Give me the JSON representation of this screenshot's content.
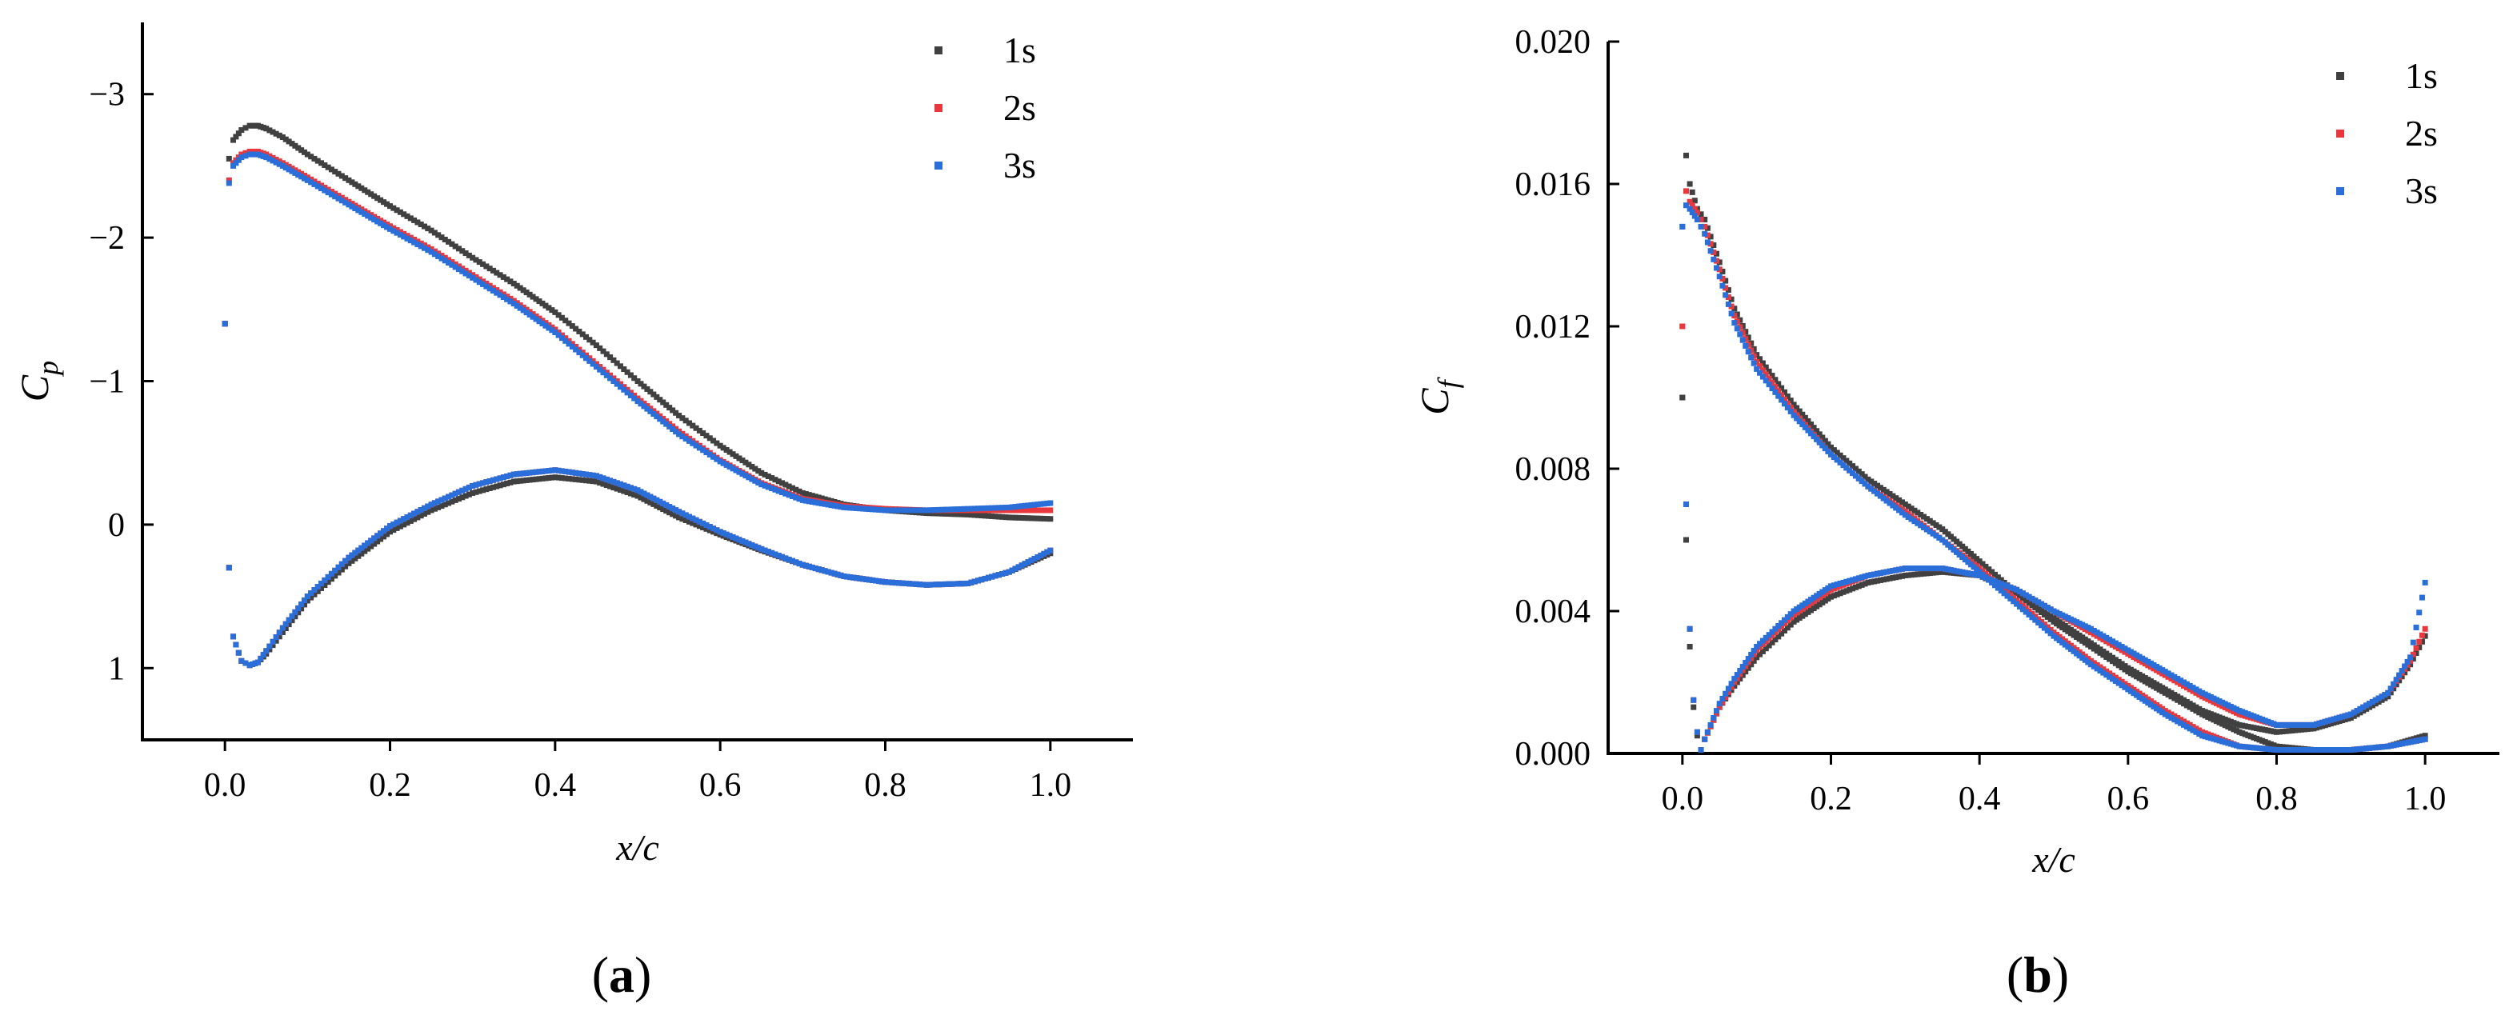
{
  "colors": {
    "1s": "#404040",
    "2s": "#e8383d",
    "3s": "#2a6fd9",
    "axis": "#000000"
  },
  "chart_data": [
    {
      "id": "a",
      "type": "scatter",
      "panel_label_open": "(",
      "panel_label_letter": "a",
      "panel_label_close": ")",
      "xlabel": "x/c",
      "ylabel_main": "C",
      "ylabel_sub": "p",
      "xlim": [
        -0.1,
        1.1
      ],
      "ylim": [
        1.5,
        -3.5
      ],
      "y_inverted": true,
      "x_ticks": [
        0.0,
        0.2,
        0.4,
        0.6,
        0.8,
        1.0
      ],
      "x_tick_labels": [
        "0.0",
        "0.2",
        "0.4",
        "0.6",
        "0.8",
        "1.0"
      ],
      "y_ticks": [
        -3,
        -2,
        -1,
        0,
        1
      ],
      "y_tick_labels": [
        "−3",
        "−2",
        "−1",
        "0",
        "1"
      ],
      "grid": false,
      "legend_position": "top-right",
      "series": [
        {
          "name": "1s",
          "upper": {
            "x": [
              0.0,
              0.005,
              0.01,
              0.02,
              0.03,
              0.04,
              0.05,
              0.07,
              0.1,
              0.15,
              0.2,
              0.25,
              0.3,
              0.35,
              0.4,
              0.45,
              0.5,
              0.55,
              0.6,
              0.65,
              0.7,
              0.75,
              0.8,
              0.85,
              0.9,
              0.95,
              1.0
            ],
            "y": [
              -1.4,
              -2.55,
              -2.68,
              -2.75,
              -2.78,
              -2.78,
              -2.76,
              -2.7,
              -2.58,
              -2.4,
              -2.22,
              -2.05,
              -1.86,
              -1.68,
              -1.48,
              -1.25,
              -1.0,
              -0.76,
              -0.55,
              -0.36,
              -0.22,
              -0.14,
              -0.1,
              -0.08,
              -0.07,
              -0.05,
              -0.04
            ]
          },
          "lower": {
            "x": [
              0.0,
              0.005,
              0.01,
              0.02,
              0.03,
              0.04,
              0.05,
              0.07,
              0.1,
              0.15,
              0.2,
              0.25,
              0.3,
              0.35,
              0.4,
              0.45,
              0.5,
              0.55,
              0.6,
              0.65,
              0.7,
              0.75,
              0.8,
              0.85,
              0.9,
              0.95,
              1.0
            ],
            "y": [
              -1.4,
              0.3,
              0.78,
              0.95,
              0.98,
              0.96,
              0.9,
              0.75,
              0.53,
              0.27,
              0.05,
              -0.1,
              -0.22,
              -0.3,
              -0.33,
              -0.3,
              -0.2,
              -0.05,
              0.07,
              0.18,
              0.28,
              0.36,
              0.4,
              0.42,
              0.41,
              0.33,
              0.2
            ]
          }
        },
        {
          "name": "2s",
          "upper": {
            "x": [
              0.0,
              0.005,
              0.01,
              0.02,
              0.03,
              0.04,
              0.05,
              0.07,
              0.1,
              0.15,
              0.2,
              0.25,
              0.3,
              0.35,
              0.4,
              0.45,
              0.5,
              0.55,
              0.6,
              0.65,
              0.7,
              0.75,
              0.8,
              0.85,
              0.9,
              0.95,
              1.0
            ],
            "y": [
              -1.4,
              -2.4,
              -2.52,
              -2.58,
              -2.6,
              -2.6,
              -2.58,
              -2.52,
              -2.42,
              -2.25,
              -2.08,
              -1.92,
              -1.74,
              -1.56,
              -1.36,
              -1.12,
              -0.88,
              -0.65,
              -0.45,
              -0.29,
              -0.18,
              -0.13,
              -0.11,
              -0.1,
              -0.1,
              -0.1,
              -0.1
            ]
          },
          "lower": {
            "x": [
              0.0,
              0.005,
              0.01,
              0.02,
              0.03,
              0.04,
              0.05,
              0.07,
              0.1,
              0.15,
              0.2,
              0.25,
              0.3,
              0.35,
              0.4,
              0.45,
              0.5,
              0.55,
              0.6,
              0.65,
              0.7,
              0.75,
              0.8,
              0.85,
              0.9,
              0.95,
              1.0
            ],
            "y": [
              -1.4,
              0.3,
              0.78,
              0.95,
              0.98,
              0.96,
              0.88,
              0.72,
              0.5,
              0.23,
              0.01,
              -0.14,
              -0.27,
              -0.35,
              -0.38,
              -0.34,
              -0.24,
              -0.09,
              0.05,
              0.17,
              0.28,
              0.36,
              0.4,
              0.42,
              0.41,
              0.33,
              0.18
            ]
          }
        },
        {
          "name": "3s",
          "upper": {
            "x": [
              0.0,
              0.005,
              0.01,
              0.02,
              0.03,
              0.04,
              0.05,
              0.07,
              0.1,
              0.15,
              0.2,
              0.25,
              0.3,
              0.35,
              0.4,
              0.45,
              0.5,
              0.55,
              0.6,
              0.65,
              0.7,
              0.75,
              0.8,
              0.85,
              0.9,
              0.95,
              1.0
            ],
            "y": [
              -1.4,
              -2.38,
              -2.5,
              -2.56,
              -2.58,
              -2.58,
              -2.56,
              -2.5,
              -2.4,
              -2.23,
              -2.06,
              -1.9,
              -1.72,
              -1.54,
              -1.34,
              -1.1,
              -0.86,
              -0.63,
              -0.44,
              -0.28,
              -0.17,
              -0.12,
              -0.1,
              -0.1,
              -0.11,
              -0.12,
              -0.15
            ]
          },
          "lower": {
            "x": [
              0.0,
              0.005,
              0.01,
              0.02,
              0.03,
              0.04,
              0.05,
              0.07,
              0.1,
              0.15,
              0.2,
              0.25,
              0.3,
              0.35,
              0.4,
              0.45,
              0.5,
              0.55,
              0.6,
              0.65,
              0.7,
              0.75,
              0.8,
              0.85,
              0.9,
              0.95,
              1.0
            ],
            "y": [
              -1.4,
              0.3,
              0.78,
              0.95,
              0.98,
              0.96,
              0.88,
              0.72,
              0.5,
              0.23,
              0.01,
              -0.14,
              -0.27,
              -0.35,
              -0.38,
              -0.34,
              -0.24,
              -0.09,
              0.05,
              0.17,
              0.28,
              0.36,
              0.4,
              0.42,
              0.41,
              0.33,
              0.18
            ]
          }
        }
      ]
    },
    {
      "id": "b",
      "type": "scatter",
      "panel_label_open": "(",
      "panel_label_letter": "b",
      "panel_label_close": ")",
      "xlabel": "x/c",
      "ylabel_main": "C",
      "ylabel_sub": "f",
      "xlim": [
        -0.1,
        1.1
      ],
      "ylim": [
        0.0,
        0.02
      ],
      "y_inverted": false,
      "x_ticks": [
        0.0,
        0.2,
        0.4,
        0.6,
        0.8,
        1.0
      ],
      "x_tick_labels": [
        "0.0",
        "0.2",
        "0.4",
        "0.6",
        "0.8",
        "1.0"
      ],
      "y_ticks": [
        0.0,
        0.004,
        0.008,
        0.012,
        0.016,
        0.02
      ],
      "y_tick_labels": [
        "0.000",
        "0.004",
        "0.008",
        "0.012",
        "0.016",
        "0.020"
      ],
      "grid": false,
      "legend_position": "top-right",
      "series": [
        {
          "name": "1s",
          "upper": {
            "x": [
              0.0,
              0.005,
              0.01,
              0.02,
              0.03,
              0.05,
              0.07,
              0.1,
              0.15,
              0.2,
              0.25,
              0.3,
              0.35,
              0.4,
              0.45,
              0.5,
              0.55,
              0.6,
              0.65,
              0.7,
              0.75,
              0.8,
              0.85,
              0.9,
              0.95,
              1.0
            ],
            "y": [
              0.01,
              0.0168,
              0.016,
              0.0153,
              0.015,
              0.0138,
              0.0125,
              0.0112,
              0.0098,
              0.0086,
              0.0077,
              0.007,
              0.0063,
              0.0054,
              0.0045,
              0.0037,
              0.003,
              0.0023,
              0.0017,
              0.0011,
              0.0006,
              0.0002,
              0.0001,
              0.0001,
              0.0002,
              0.0005
            ]
          },
          "lower": {
            "x": [
              0.0,
              0.005,
              0.01,
              0.015,
              0.02,
              0.025,
              0.03,
              0.05,
              0.07,
              0.1,
              0.15,
              0.2,
              0.25,
              0.3,
              0.35,
              0.4,
              0.45,
              0.5,
              0.55,
              0.6,
              0.65,
              0.7,
              0.75,
              0.8,
              0.85,
              0.9,
              0.95,
              0.98,
              1.0
            ],
            "y": [
              0.01,
              0.006,
              0.003,
              0.0013,
              0.0005,
              0.0001,
              0.0004,
              0.0013,
              0.0019,
              0.0027,
              0.0037,
              0.0044,
              0.0048,
              0.005,
              0.0051,
              0.005,
              0.0045,
              0.0038,
              0.0031,
              0.0024,
              0.0018,
              0.0012,
              0.0008,
              0.0006,
              0.0007,
              0.001,
              0.0016,
              0.0025,
              0.0033
            ]
          }
        },
        {
          "name": "2s",
          "upper": {
            "x": [
              0.0,
              0.005,
              0.01,
              0.02,
              0.03,
              0.05,
              0.07,
              0.1,
              0.15,
              0.2,
              0.25,
              0.3,
              0.35,
              0.4,
              0.45,
              0.5,
              0.55,
              0.6,
              0.65,
              0.7,
              0.75,
              0.8,
              0.85,
              0.9,
              0.95,
              1.0
            ],
            "y": [
              0.012,
              0.0158,
              0.0155,
              0.0152,
              0.0148,
              0.0136,
              0.0123,
              0.011,
              0.0096,
              0.0084,
              0.0075,
              0.0068,
              0.006,
              0.0052,
              0.0043,
              0.0034,
              0.0026,
              0.0019,
              0.0012,
              0.0006,
              0.0002,
              0.0001,
              0.0001,
              0.0001,
              0.0002,
              0.0004
            ]
          },
          "lower": {
            "x": [
              0.0,
              0.005,
              0.01,
              0.015,
              0.02,
              0.025,
              0.03,
              0.05,
              0.07,
              0.1,
              0.15,
              0.2,
              0.25,
              0.3,
              0.35,
              0.4,
              0.45,
              0.5,
              0.55,
              0.6,
              0.65,
              0.7,
              0.75,
              0.8,
              0.85,
              0.9,
              0.95,
              0.98,
              1.0
            ],
            "y": [
              0.012,
              0.007,
              0.0035,
              0.0015,
              0.0006,
              0.0001,
              0.0004,
              0.0013,
              0.002,
              0.0029,
              0.0039,
              0.0046,
              0.005,
              0.0052,
              0.0052,
              0.005,
              0.0046,
              0.004,
              0.0034,
              0.0028,
              0.0022,
              0.0016,
              0.0011,
              0.0008,
              0.0008,
              0.0011,
              0.0017,
              0.0026,
              0.0035
            ]
          }
        },
        {
          "name": "3s",
          "upper": {
            "x": [
              0.0,
              0.005,
              0.01,
              0.02,
              0.03,
              0.05,
              0.07,
              0.1,
              0.15,
              0.2,
              0.25,
              0.3,
              0.35,
              0.4,
              0.45,
              0.5,
              0.55,
              0.6,
              0.65,
              0.7,
              0.75,
              0.8,
              0.85,
              0.9,
              0.95,
              1.0
            ],
            "y": [
              0.0148,
              0.0154,
              0.0153,
              0.015,
              0.0146,
              0.0134,
              0.0121,
              0.0108,
              0.0095,
              0.0084,
              0.0075,
              0.0067,
              0.006,
              0.0051,
              0.0042,
              0.0033,
              0.0025,
              0.0018,
              0.0011,
              0.0005,
              0.0002,
              0.0001,
              0.0001,
              0.0001,
              0.0002,
              0.0004
            ]
          },
          "lower": {
            "x": [
              0.0,
              0.005,
              0.01,
              0.015,
              0.02,
              0.025,
              0.03,
              0.05,
              0.07,
              0.1,
              0.15,
              0.2,
              0.25,
              0.3,
              0.35,
              0.4,
              0.45,
              0.5,
              0.55,
              0.6,
              0.65,
              0.7,
              0.75,
              0.8,
              0.85,
              0.9,
              0.95,
              0.98,
              1.0
            ],
            "y": [
              0.0148,
              0.007,
              0.0035,
              0.0015,
              0.0006,
              0.0001,
              0.0004,
              0.0014,
              0.0021,
              0.003,
              0.004,
              0.0047,
              0.005,
              0.0052,
              0.0052,
              0.005,
              0.0046,
              0.004,
              0.0035,
              0.0029,
              0.0023,
              0.0017,
              0.0012,
              0.0008,
              0.0008,
              0.0011,
              0.0017,
              0.0027,
              0.0048
            ]
          }
        }
      ]
    }
  ]
}
